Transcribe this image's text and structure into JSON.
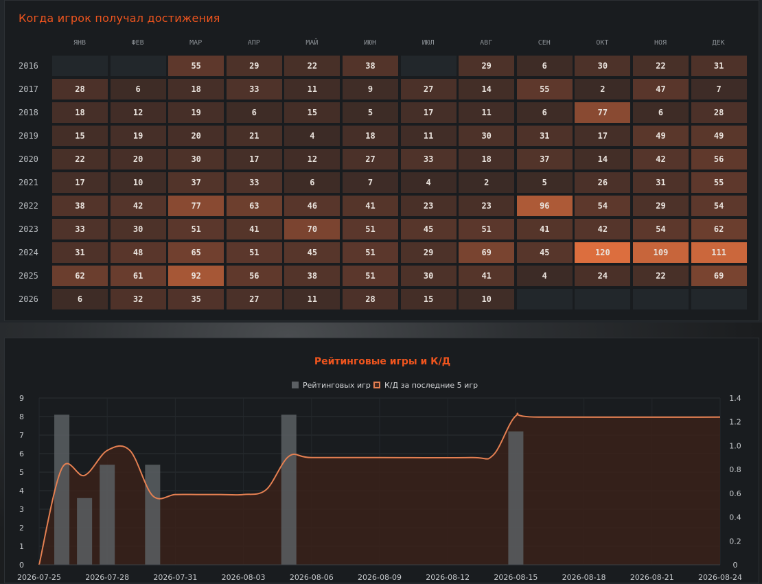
{
  "heatmap": {
    "title": "Когда игрок получал достижения",
    "months": [
      "ЯНВ",
      "ФЕВ",
      "МАР",
      "АПР",
      "МАЙ",
      "ИЮН",
      "ИЮЛ",
      "АВГ",
      "СЕН",
      "ОКТ",
      "НОЯ",
      "ДЕК"
    ],
    "rows": [
      {
        "year": "2016",
        "values": [
          null,
          null,
          55,
          29,
          22,
          38,
          null,
          29,
          6,
          30,
          22,
          31
        ]
      },
      {
        "year": "2017",
        "values": [
          28,
          6,
          18,
          33,
          11,
          9,
          27,
          14,
          55,
          2,
          47,
          7
        ]
      },
      {
        "year": "2018",
        "values": [
          18,
          12,
          19,
          6,
          15,
          5,
          17,
          11,
          6,
          77,
          6,
          28
        ]
      },
      {
        "year": "2019",
        "values": [
          15,
          19,
          20,
          21,
          4,
          18,
          11,
          30,
          31,
          17,
          49,
          49
        ]
      },
      {
        "year": "2020",
        "values": [
          22,
          20,
          30,
          17,
          12,
          27,
          33,
          18,
          37,
          14,
          42,
          56
        ]
      },
      {
        "year": "2021",
        "values": [
          17,
          10,
          37,
          33,
          6,
          7,
          4,
          2,
          5,
          26,
          31,
          55
        ]
      },
      {
        "year": "2022",
        "values": [
          38,
          42,
          77,
          63,
          46,
          41,
          23,
          23,
          96,
          54,
          29,
          54
        ]
      },
      {
        "year": "2023",
        "values": [
          33,
          30,
          51,
          41,
          70,
          51,
          45,
          51,
          41,
          42,
          54,
          62
        ]
      },
      {
        "year": "2024",
        "values": [
          31,
          48,
          65,
          51,
          45,
          51,
          29,
          69,
          45,
          120,
          109,
          111
        ]
      },
      {
        "year": "2025",
        "values": [
          62,
          61,
          92,
          56,
          38,
          51,
          30,
          41,
          4,
          24,
          22,
          69
        ]
      },
      {
        "year": "2026",
        "values": [
          6,
          32,
          35,
          27,
          11,
          28,
          15,
          10,
          null,
          null,
          null,
          null
        ]
      }
    ]
  },
  "chart_data": {
    "type": "bar+line",
    "title": "Рейтинговые игры и К/Д",
    "legend": [
      "Рейтинговых игр",
      "К/Д за последние 5 игр"
    ],
    "legend_position": "top-center",
    "x_ticks": [
      "2026-07-25",
      "2026-07-28",
      "2026-07-31",
      "2026-08-03",
      "2026-08-06",
      "2026-08-09",
      "2026-08-12",
      "2026-08-15",
      "2026-08-18",
      "2026-08-21",
      "2026-08-24"
    ],
    "y_left": {
      "min": 0,
      "max": 9,
      "ticks": [
        "0",
        "1",
        "2",
        "3",
        "4",
        "5",
        "6",
        "7",
        "8",
        "9"
      ]
    },
    "y_right": {
      "min": 0,
      "max": 1.4,
      "ticks": [
        "0",
        "0.2",
        "0.4",
        "0.6",
        "0.8",
        "1.0",
        "1.2",
        "1.4"
      ]
    },
    "series": [
      {
        "name": "Рейтинговых игр",
        "type": "bar",
        "axis": "left",
        "points": [
          {
            "x": "2026-07-26",
            "y": 8.1
          },
          {
            "x": "2026-07-27",
            "y": 3.6
          },
          {
            "x": "2026-07-28",
            "y": 5.4
          },
          {
            "x": "2026-07-30",
            "y": 5.4
          },
          {
            "x": "2026-08-05",
            "y": 8.1
          },
          {
            "x": "2026-08-15",
            "y": 7.2
          }
        ]
      },
      {
        "name": "К/Д за последние 5 игр",
        "type": "line",
        "axis": "right",
        "points": [
          {
            "x": "2026-07-25",
            "y": 0
          },
          {
            "x": "2026-07-26",
            "y": 0.81
          },
          {
            "x": "2026-07-27",
            "y": 0.75
          },
          {
            "x": "2026-07-28",
            "y": 0.96
          },
          {
            "x": "2026-07-29",
            "y": 0.96
          },
          {
            "x": "2026-07-30",
            "y": 0.58
          },
          {
            "x": "2026-07-31",
            "y": 0.59
          },
          {
            "x": "2026-08-01",
            "y": 0.59
          },
          {
            "x": "2026-08-02",
            "y": 0.59
          },
          {
            "x": "2026-08-03",
            "y": 0.59
          },
          {
            "x": "2026-08-04",
            "y": 0.63
          },
          {
            "x": "2026-08-05",
            "y": 0.91
          },
          {
            "x": "2026-08-06",
            "y": 0.9
          },
          {
            "x": "2026-08-09",
            "y": 0.9
          },
          {
            "x": "2026-08-13",
            "y": 0.9
          },
          {
            "x": "2026-08-14",
            "y": 0.92
          },
          {
            "x": "2026-08-15",
            "y": 1.25
          },
          {
            "x": "2026-08-16",
            "y": 1.24
          },
          {
            "x": "2026-08-24",
            "y": 1.24
          }
        ]
      }
    ],
    "grid": true
  },
  "colors": {
    "accent": "#f0551e",
    "bar": "#5b5f63",
    "line": "#e58052",
    "area": "#3a211a"
  }
}
